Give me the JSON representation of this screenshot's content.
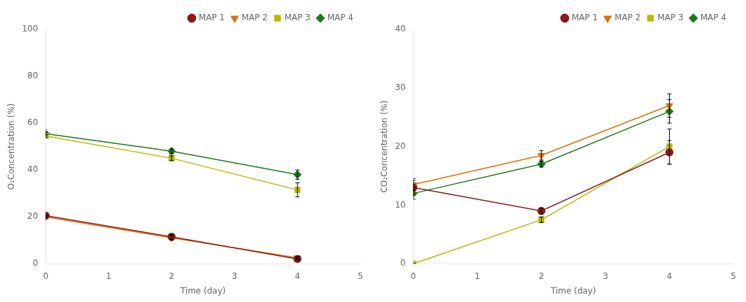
{
  "chart_data": [
    {
      "type": "line",
      "xlabel": "Time (day)",
      "ylabel": "O₂Concentration (%)",
      "x": [
        0,
        2,
        4
      ],
      "xlim": [
        0,
        5
      ],
      "xticks": [
        0,
        1,
        2,
        3,
        4,
        5
      ],
      "ylim": [
        0,
        100
      ],
      "yticks": [
        0,
        20,
        40,
        60,
        80,
        100
      ],
      "grid": false,
      "legend": "upper right",
      "series": [
        {
          "name": "MAP 1",
          "color": "#8B1A1A",
          "marker": "o",
          "values": [
            20.5,
            11.5,
            2.0
          ],
          "yerr": [
            0.5,
            1.0,
            0.5
          ]
        },
        {
          "name": "MAP 2",
          "color": "#E07000",
          "marker": "v",
          "values": [
            20.0,
            11.0,
            2.5
          ],
          "yerr": [
            0.5,
            1.0,
            0.5
          ]
        },
        {
          "name": "MAP 3",
          "color": "#B8B800",
          "marker": "s",
          "values": [
            54.5,
            45.0,
            31.5
          ],
          "yerr": [
            0.5,
            1.0,
            3.0
          ]
        },
        {
          "name": "MAP 4",
          "color": "#1B7B1B",
          "marker": "D",
          "values": [
            55.5,
            48.0,
            38.0
          ],
          "yerr": [
            0.5,
            1.0,
            2.0
          ]
        }
      ]
    },
    {
      "type": "line",
      "xlabel": "Time (day)",
      "ylabel": "CO₂Concentration (%)",
      "x": [
        0,
        2,
        4
      ],
      "xlim": [
        0,
        5
      ],
      "xticks": [
        0,
        1,
        2,
        3,
        4,
        5
      ],
      "ylim": [
        0,
        40
      ],
      "yticks": [
        0,
        10,
        20,
        30,
        40
      ],
      "grid": false,
      "legend": "upper right",
      "series": [
        {
          "name": "MAP 1",
          "color": "#8B1A1A",
          "marker": "o",
          "values": [
            13.0,
            9.0,
            19.0
          ],
          "yerr": [
            1.2,
            0.5,
            2.0
          ]
        },
        {
          "name": "MAP 2",
          "color": "#E07000",
          "marker": "v",
          "values": [
            13.5,
            18.5,
            27.0
          ],
          "yerr": [
            1.0,
            0.8,
            2.0
          ]
        },
        {
          "name": "MAP 3",
          "color": "#B8B800",
          "marker": "s",
          "values": [
            0.0,
            7.5,
            20.0
          ],
          "yerr": [
            0.0,
            0.5,
            3.0
          ]
        },
        {
          "name": "MAP 4",
          "color": "#1B7B1B",
          "marker": "D",
          "values": [
            12.0,
            17.0,
            26.0
          ],
          "yerr": [
            1.0,
            0.5,
            2.0
          ]
        }
      ]
    }
  ]
}
